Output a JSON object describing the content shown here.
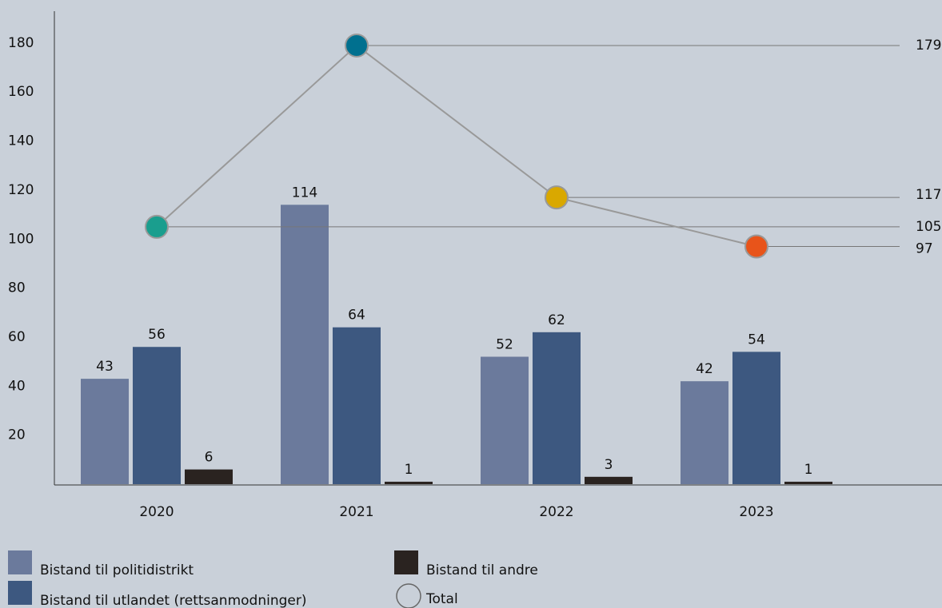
{
  "chart_data": {
    "type": "bar",
    "categories": [
      "2020",
      "2021",
      "2022",
      "2023"
    ],
    "series": [
      {
        "name": "Bistand til politidistrikt",
        "color": "#6b7a9c",
        "values": [
          43,
          114,
          52,
          42
        ]
      },
      {
        "name": "Bistand til utlandet (rettsanmodninger)",
        "color": "#3d5880",
        "values": [
          56,
          64,
          62,
          54
        ]
      },
      {
        "name": "Bistand til andre",
        "color": "#2a2320",
        "values": [
          6,
          1,
          3,
          1
        ]
      }
    ],
    "total": {
      "name": "Total",
      "type": "line",
      "color": "#999999",
      "point_colors": [
        "#1a9e8e",
        "#00708f",
        "#d9a800",
        "#e8541a"
      ],
      "values": [
        105,
        179,
        117,
        97
      ]
    },
    "ylim": [
      0,
      193
    ],
    "yticks": [
      20,
      40,
      60,
      80,
      100,
      120,
      140,
      160,
      180
    ],
    "grid": false
  }
}
